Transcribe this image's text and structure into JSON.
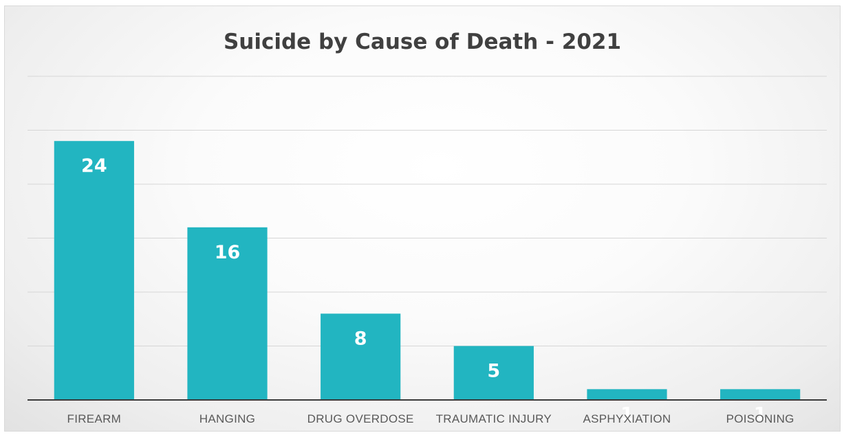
{
  "chart_data": {
    "type": "bar",
    "title": "Suicide by Cause of Death - 2021",
    "categories": [
      "FIREARM",
      "HANGING",
      "DRUG OVERDOSE",
      "TRAUMATIC INJURY",
      "ASPHYXIATION",
      "POISONING"
    ],
    "values": [
      24,
      16,
      8,
      5,
      1,
      1
    ],
    "data_labels": [
      "24",
      "16",
      "8",
      "5",
      "1",
      "1"
    ],
    "xlabel": "",
    "ylabel": "",
    "ylim": [
      0,
      30
    ],
    "y_axis_visible": false,
    "grid": true,
    "legend": "none",
    "bar_color": "#22b5c1"
  }
}
